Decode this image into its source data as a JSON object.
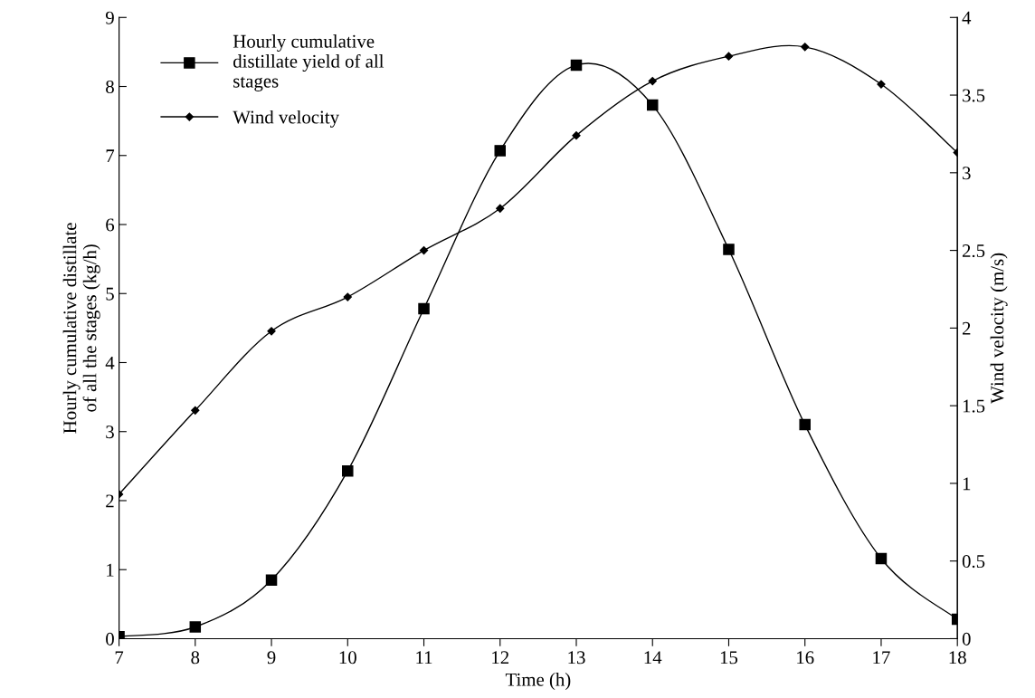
{
  "chart_data": {
    "type": "line",
    "xlabel": "Time (h)",
    "ylabel": "Hourly cumulative distillate\nof all the stages (kg/h)",
    "y2label": "Wind velocity (m/s)",
    "x": [
      7,
      8,
      9,
      10,
      11,
      12,
      13,
      14,
      15,
      16,
      17,
      18
    ],
    "series": [
      {
        "name": "Hourly cumulative\ndistillate yield of all\nstages",
        "color": "#000000",
        "marker": "square",
        "values": [
          0.03,
          0.17,
          0.85,
          2.43,
          4.78,
          7.07,
          8.31,
          7.73,
          5.64,
          3.1,
          1.16,
          0.28
        ]
      },
      {
        "name": "Wind velocity",
        "color": "#000000",
        "marker": "diamond",
        "axis": "y2",
        "values": [
          0.93,
          1.47,
          1.98,
          2.2,
          2.5,
          2.77,
          3.24,
          3.59,
          3.75,
          3.81,
          3.57,
          3.13
        ]
      }
    ],
    "xlim": [
      7,
      18
    ],
    "xticks": [
      7,
      8,
      9,
      10,
      11,
      12,
      13,
      14,
      15,
      16,
      17,
      18
    ],
    "ylim": [
      0,
      9
    ],
    "yticks": [
      0,
      1,
      2,
      3,
      4,
      5,
      6,
      7,
      8,
      9
    ],
    "y2lim": [
      0,
      4
    ],
    "y2ticks": [
      0,
      0.5,
      1,
      1.5,
      2,
      2.5,
      3,
      3.5,
      4
    ],
    "grid": false,
    "legend": "top left",
    "line_style": "solid"
  }
}
